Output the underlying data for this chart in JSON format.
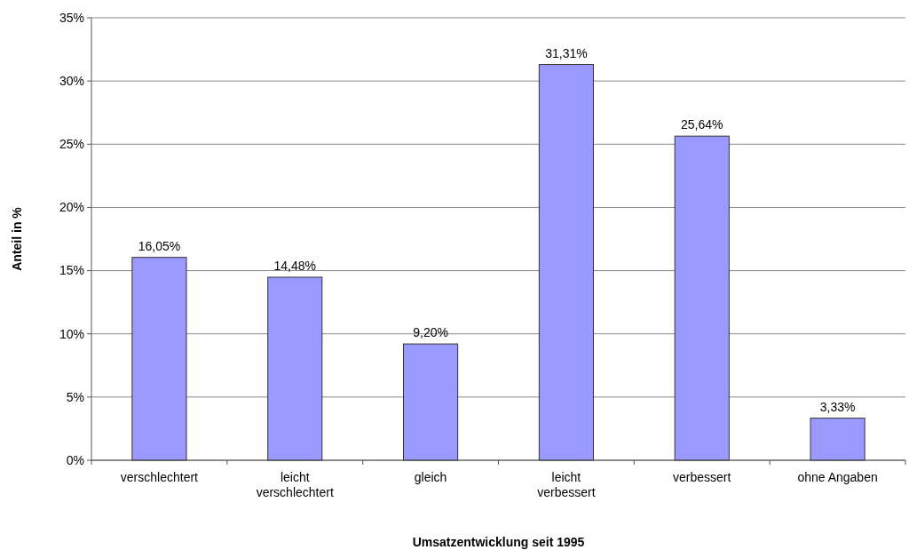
{
  "chart_data": {
    "type": "bar",
    "xlabel": "Umsatzentwicklung seit 1995",
    "ylabel": "Anteil in %",
    "categories": [
      "verschlechtert",
      "leicht verschlechtert",
      "gleich",
      "leicht verbessert",
      "verbessert",
      "ohne Angaben"
    ],
    "values": [
      16.05,
      14.48,
      9.2,
      31.31,
      25.64,
      3.33
    ],
    "value_labels": [
      "16,05%",
      "14,48%",
      "9,20%",
      "31,31%",
      "25,64%",
      "3,33%"
    ],
    "color": "#9999ff",
    "ylim": [
      0,
      35
    ],
    "yticks": [
      {
        "value": 0,
        "label": "0%"
      },
      {
        "value": 5,
        "label": "5%"
      },
      {
        "value": 10,
        "label": "10%"
      },
      {
        "value": 15,
        "label": "15%"
      },
      {
        "value": 20,
        "label": "20%"
      },
      {
        "value": 25,
        "label": "25%"
      },
      {
        "value": 30,
        "label": "30%"
      },
      {
        "value": 35,
        "label": "35%"
      }
    ],
    "grid": "y"
  }
}
